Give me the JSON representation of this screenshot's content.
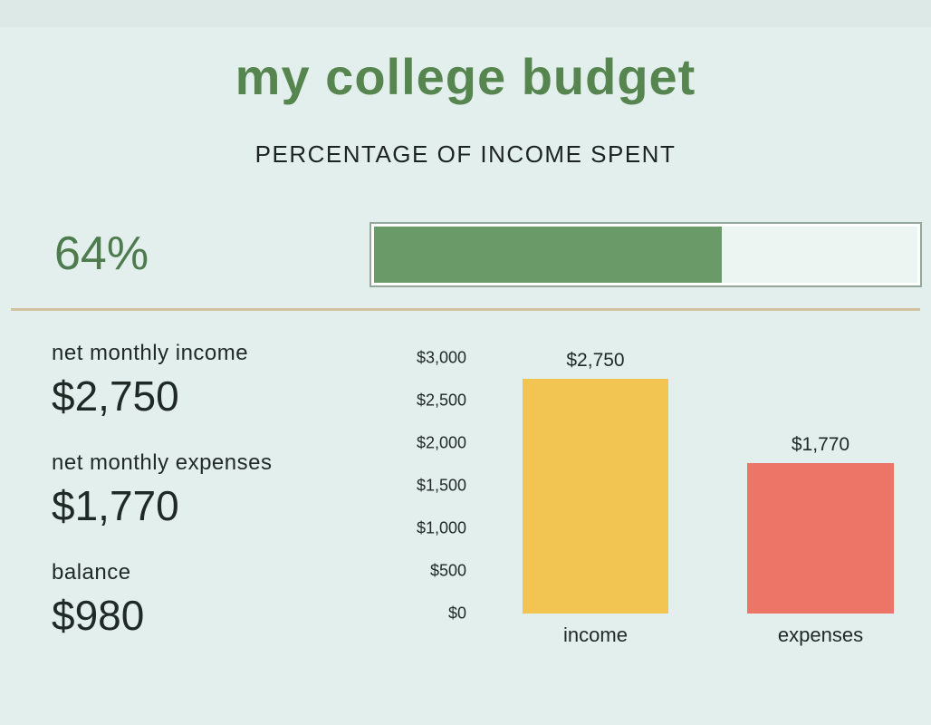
{
  "title": "my college budget",
  "subtitle": "PERCENTAGE OF INCOME SPENT",
  "progress": {
    "percent_label": "64%",
    "percent_value": 64,
    "fill_color": "#6b9a69",
    "border_color": "#93a79a"
  },
  "stats": [
    {
      "label": "net monthly income",
      "value": "$2,750"
    },
    {
      "label": "net monthly expenses",
      "value": "$1,770"
    },
    {
      "label": "balance",
      "value": "$980"
    }
  ],
  "chart_data": {
    "type": "bar",
    "title": "",
    "categories": [
      "income",
      "expenses"
    ],
    "values": [
      2750,
      1770
    ],
    "value_labels": [
      "$2,750",
      "$1,770"
    ],
    "bar_colors": [
      "#f2c553",
      "#ed7568"
    ],
    "ylim": [
      0,
      3000
    ],
    "ytick_labels": [
      "$3,000",
      "$2,500",
      "$2,000",
      "$1,500",
      "$1,000",
      "$500",
      "$0"
    ],
    "ytick_values": [
      3000,
      2500,
      2000,
      1500,
      1000,
      500,
      0
    ],
    "grid": false,
    "legend": "none",
    "xlabel": "",
    "ylabel": ""
  },
  "colors": {
    "background": "#e3efed",
    "title_green": "#56854f",
    "accent_green": "#6b9a69",
    "divider_tan": "#d1c19f",
    "income_yellow": "#f2c553",
    "expenses_red": "#ed7568",
    "text_dark": "#1f2925"
  }
}
